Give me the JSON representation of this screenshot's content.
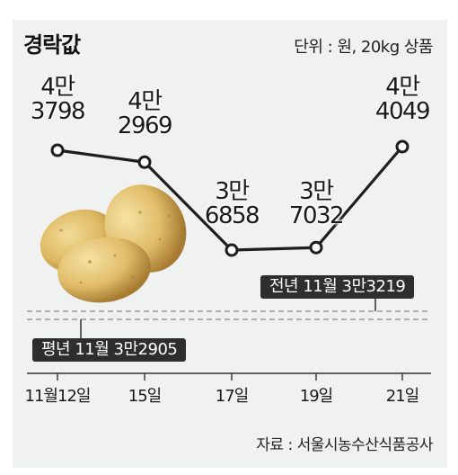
{
  "title": "경락값",
  "unit_note": "단위 : 원, 20kg 상품",
  "source": "자료 : 서울시농수산식품공사",
  "chart_data": {
    "type": "line",
    "title": "경락값",
    "unit": "원, 20kg 상품",
    "categories": [
      "11월12일",
      "15일",
      "17일",
      "19일",
      "21일"
    ],
    "values": [
      43798,
      42969,
      36858,
      37032,
      44049
    ],
    "value_labels": [
      [
        "4만",
        "3798"
      ],
      [
        "4만",
        "2969"
      ],
      [
        "3만",
        "6858"
      ],
      [
        "3만",
        "7032"
      ],
      [
        "4만",
        "4049"
      ]
    ],
    "reference_lines": [
      {
        "label": "전년 11월 3만3219",
        "value": 33219,
        "style": "dashed"
      },
      {
        "label": "평년 11월 3만2905",
        "value": 32905,
        "style": "dashed"
      }
    ],
    "grid": false,
    "line_color": "#1e1e1e",
    "marker_fill": "#ffffff"
  }
}
